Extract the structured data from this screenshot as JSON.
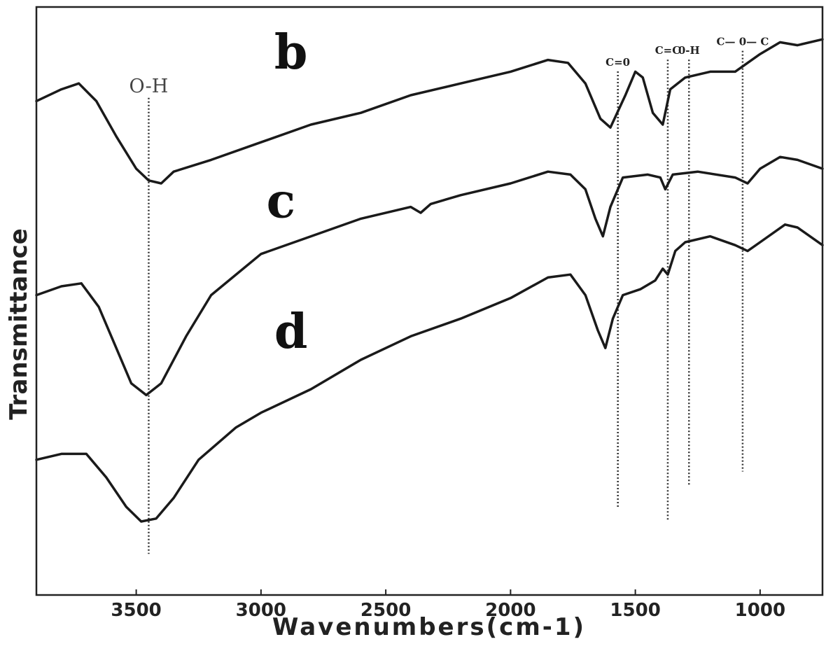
{
  "chart_data": {
    "type": "line",
    "title": "",
    "xlabel": "Wavenumbers(cm-1)",
    "ylabel": "Transmittance",
    "xlim": [
      3900,
      750
    ],
    "x_reversed": true,
    "x_ticks": [
      3500,
      3000,
      2500,
      2000,
      1500,
      1000
    ],
    "y_ticks_shown": false,
    "grid": false,
    "legend": "none",
    "series": [
      {
        "name": "b",
        "points": [
          [
            3900,
            0.84
          ],
          [
            3800,
            0.86
          ],
          [
            3730,
            0.87
          ],
          [
            3660,
            0.84
          ],
          [
            3580,
            0.78
          ],
          [
            3500,
            0.725
          ],
          [
            3450,
            0.705
          ],
          [
            3400,
            0.7
          ],
          [
            3350,
            0.72
          ],
          [
            3200,
            0.74
          ],
          [
            3000,
            0.77
          ],
          [
            2800,
            0.8
          ],
          [
            2600,
            0.82
          ],
          [
            2400,
            0.85
          ],
          [
            2200,
            0.87
          ],
          [
            2000,
            0.89
          ],
          [
            1850,
            0.91
          ],
          [
            1770,
            0.905
          ],
          [
            1700,
            0.87
          ],
          [
            1640,
            0.81
          ],
          [
            1600,
            0.795
          ],
          [
            1540,
            0.85
          ],
          [
            1500,
            0.89
          ],
          [
            1470,
            0.88
          ],
          [
            1430,
            0.82
          ],
          [
            1390,
            0.8
          ],
          [
            1360,
            0.86
          ],
          [
            1300,
            0.88
          ],
          [
            1200,
            0.89
          ],
          [
            1100,
            0.89
          ],
          [
            1000,
            0.92
          ],
          [
            920,
            0.94
          ],
          [
            850,
            0.935
          ],
          [
            750,
            0.945
          ]
        ]
      },
      {
        "name": "c",
        "points": [
          [
            3900,
            0.51
          ],
          [
            3800,
            0.525
          ],
          [
            3720,
            0.53
          ],
          [
            3650,
            0.49
          ],
          [
            3580,
            0.42
          ],
          [
            3520,
            0.36
          ],
          [
            3460,
            0.34
          ],
          [
            3400,
            0.36
          ],
          [
            3300,
            0.44
          ],
          [
            3200,
            0.51
          ],
          [
            3000,
            0.58
          ],
          [
            2800,
            0.61
          ],
          [
            2600,
            0.64
          ],
          [
            2400,
            0.66
          ],
          [
            2360,
            0.65
          ],
          [
            2320,
            0.665
          ],
          [
            2200,
            0.68
          ],
          [
            2000,
            0.7
          ],
          [
            1850,
            0.72
          ],
          [
            1760,
            0.715
          ],
          [
            1700,
            0.69
          ],
          [
            1660,
            0.64
          ],
          [
            1630,
            0.61
          ],
          [
            1600,
            0.66
          ],
          [
            1550,
            0.71
          ],
          [
            1450,
            0.715
          ],
          [
            1400,
            0.71
          ],
          [
            1380,
            0.69
          ],
          [
            1350,
            0.715
          ],
          [
            1250,
            0.72
          ],
          [
            1100,
            0.71
          ],
          [
            1050,
            0.7
          ],
          [
            1000,
            0.725
          ],
          [
            920,
            0.745
          ],
          [
            850,
            0.74
          ],
          [
            750,
            0.725
          ]
        ]
      },
      {
        "name": "d",
        "points": [
          [
            3900,
            0.23
          ],
          [
            3800,
            0.24
          ],
          [
            3700,
            0.24
          ],
          [
            3620,
            0.2
          ],
          [
            3540,
            0.15
          ],
          [
            3480,
            0.125
          ],
          [
            3420,
            0.13
          ],
          [
            3350,
            0.165
          ],
          [
            3250,
            0.23
          ],
          [
            3100,
            0.285
          ],
          [
            3000,
            0.31
          ],
          [
            2800,
            0.35
          ],
          [
            2600,
            0.4
          ],
          [
            2400,
            0.44
          ],
          [
            2200,
            0.47
          ],
          [
            2000,
            0.505
          ],
          [
            1850,
            0.54
          ],
          [
            1760,
            0.545
          ],
          [
            1700,
            0.51
          ],
          [
            1650,
            0.45
          ],
          [
            1620,
            0.42
          ],
          [
            1590,
            0.47
          ],
          [
            1550,
            0.51
          ],
          [
            1480,
            0.52
          ],
          [
            1420,
            0.535
          ],
          [
            1390,
            0.555
          ],
          [
            1370,
            0.545
          ],
          [
            1340,
            0.585
          ],
          [
            1300,
            0.6
          ],
          [
            1200,
            0.61
          ],
          [
            1100,
            0.595
          ],
          [
            1050,
            0.585
          ],
          [
            1000,
            0.6
          ],
          [
            900,
            0.63
          ],
          [
            850,
            0.625
          ],
          [
            750,
            0.595
          ]
        ]
      }
    ],
    "series_labels": [
      {
        "text": "b",
        "x": 2880,
        "y": 0.895
      },
      {
        "text": "c",
        "x": 2920,
        "y": 0.642
      },
      {
        "text": "d",
        "x": 2880,
        "y": 0.42
      }
    ],
    "annotations": [
      {
        "text": "O-H",
        "x": 3450,
        "y_top": 0.855,
        "y_bottom": 0.07
      },
      {
        "text": "C=0",
        "x": 1570,
        "y_top": 0.9,
        "y_bottom": 0.15
      },
      {
        "text": "C=C",
        "x": 1370,
        "y_top": 0.92,
        "y_bottom": 0.125
      },
      {
        "text": "0-H",
        "x": 1285,
        "y_top": 0.92,
        "y_bottom": 0.185
      },
      {
        "text": "C— 0— C",
        "x": 1070,
        "y_top": 0.935,
        "y_bottom": 0.21
      }
    ]
  }
}
